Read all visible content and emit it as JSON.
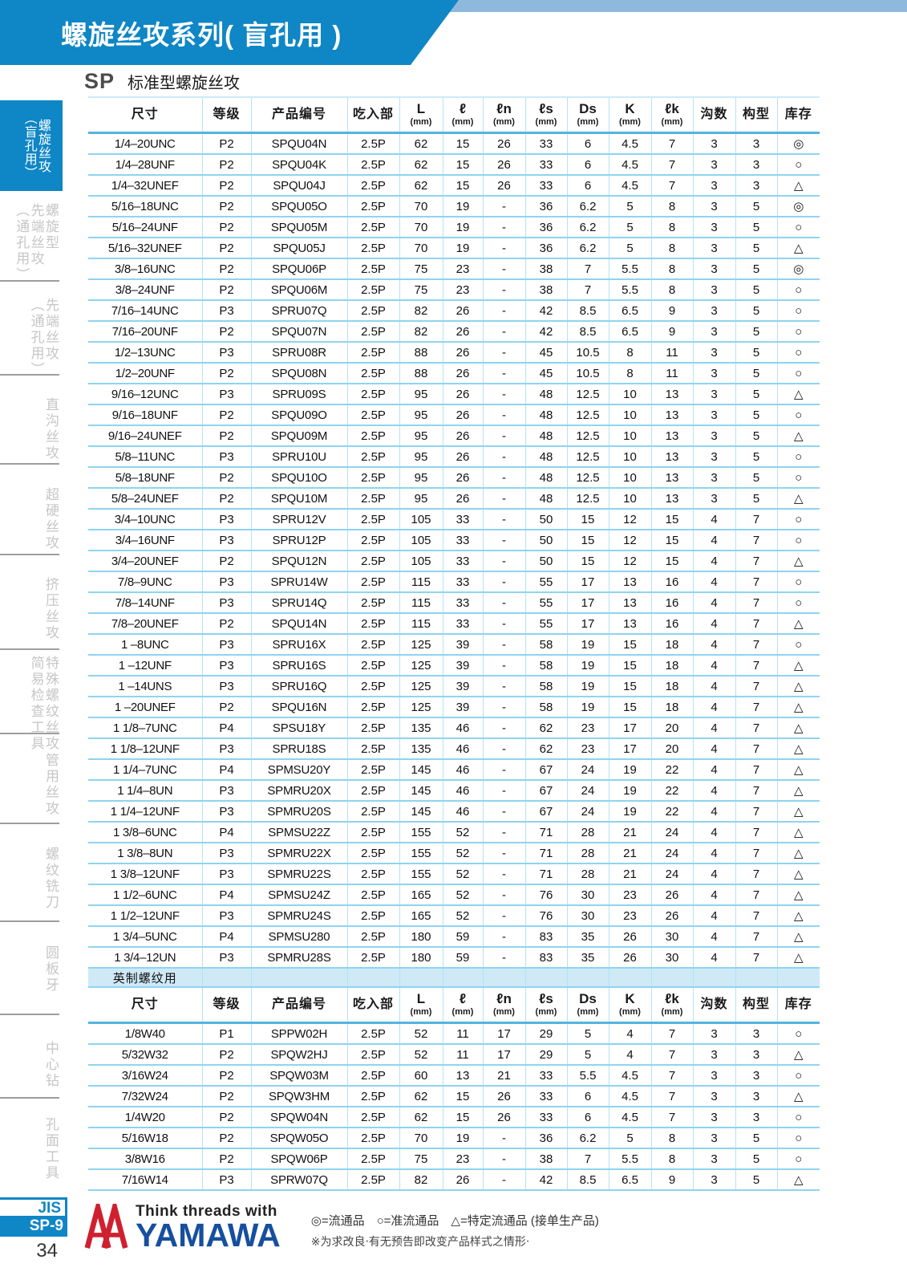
{
  "banner": {
    "title": "螺旋丝攻系列( 盲孔用 )"
  },
  "section": {
    "code": "SP",
    "title": "标准型螺旋丝攻"
  },
  "sidebar": {
    "items": [
      {
        "label": "螺旋丝攻\n（盲孔用）",
        "active": true
      },
      {
        "label": "螺旋型\n先端丝攻\n（通孔用）",
        "active": false
      },
      {
        "label": "先端丝攻\n（通孔用）",
        "active": false
      },
      {
        "label": "直沟丝攻",
        "active": false
      },
      {
        "label": "超硬丝攻",
        "active": false
      },
      {
        "label": "挤压丝攻",
        "active": false
      },
      {
        "label": "特殊螺纹丝攻\n简易检查工具",
        "active": false
      },
      {
        "label": "管用丝攻",
        "active": false
      },
      {
        "label": "螺纹铣刀",
        "active": false
      },
      {
        "label": "圆板牙",
        "active": false
      },
      {
        "label": "中心钻",
        "active": false
      },
      {
        "label": "孔面工具",
        "active": false
      }
    ],
    "jis_label": "JIS",
    "page_code": "SP-9",
    "page_number": "34"
  },
  "table": {
    "columns": [
      {
        "label": "尺寸",
        "cjk": true
      },
      {
        "label": "等级",
        "cjk": true
      },
      {
        "label": "产品编号",
        "cjk": true
      },
      {
        "label": "吃入部",
        "cjk": true
      },
      {
        "label": "L",
        "unit": "(mm)"
      },
      {
        "label": "ℓ",
        "unit": "(mm)"
      },
      {
        "label": "ℓn",
        "unit": "(mm)"
      },
      {
        "label": "ℓs",
        "unit": "(mm)"
      },
      {
        "label": "Ds",
        "unit": "(mm)"
      },
      {
        "label": "K",
        "unit": "(mm)"
      },
      {
        "label": "ℓk",
        "unit": "(mm)"
      },
      {
        "label": "沟数",
        "cjk": true
      },
      {
        "label": "构型",
        "cjk": true
      },
      {
        "label": "库存",
        "cjk": true
      }
    ],
    "unified_rows": [
      [
        "1/4–20UNC",
        "P2",
        "SPQU04N",
        "2.5P",
        "62",
        "15",
        "26",
        "33",
        "6",
        "4.5",
        "7",
        "3",
        "3",
        "◎"
      ],
      [
        "1/4–28UNF",
        "P2",
        "SPQU04K",
        "2.5P",
        "62",
        "15",
        "26",
        "33",
        "6",
        "4.5",
        "7",
        "3",
        "3",
        "○"
      ],
      [
        "1/4–32UNEF",
        "P2",
        "SPQU04J",
        "2.5P",
        "62",
        "15",
        "26",
        "33",
        "6",
        "4.5",
        "7",
        "3",
        "3",
        "△"
      ],
      [
        "5/16–18UNC",
        "P2",
        "SPQU05O",
        "2.5P",
        "70",
        "19",
        "-",
        "36",
        "6.2",
        "5",
        "8",
        "3",
        "5",
        "◎"
      ],
      [
        "5/16–24UNF",
        "P2",
        "SPQU05M",
        "2.5P",
        "70",
        "19",
        "-",
        "36",
        "6.2",
        "5",
        "8",
        "3",
        "5",
        "○"
      ],
      [
        "5/16–32UNEF",
        "P2",
        "SPQU05J",
        "2.5P",
        "70",
        "19",
        "-",
        "36",
        "6.2",
        "5",
        "8",
        "3",
        "5",
        "△"
      ],
      [
        "3/8–16UNC",
        "P2",
        "SPQU06P",
        "2.5P",
        "75",
        "23",
        "-",
        "38",
        "7",
        "5.5",
        "8",
        "3",
        "5",
        "◎"
      ],
      [
        "3/8–24UNF",
        "P2",
        "SPQU06M",
        "2.5P",
        "75",
        "23",
        "-",
        "38",
        "7",
        "5.5",
        "8",
        "3",
        "5",
        "○"
      ],
      [
        "7/16–14UNC",
        "P3",
        "SPRU07Q",
        "2.5P",
        "82",
        "26",
        "-",
        "42",
        "8.5",
        "6.5",
        "9",
        "3",
        "5",
        "○"
      ],
      [
        "7/16–20UNF",
        "P2",
        "SPQU07N",
        "2.5P",
        "82",
        "26",
        "-",
        "42",
        "8.5",
        "6.5",
        "9",
        "3",
        "5",
        "○"
      ],
      [
        "1/2–13UNC",
        "P3",
        "SPRU08R",
        "2.5P",
        "88",
        "26",
        "-",
        "45",
        "10.5",
        "8",
        "11",
        "3",
        "5",
        "○"
      ],
      [
        "1/2–20UNF",
        "P2",
        "SPQU08N",
        "2.5P",
        "88",
        "26",
        "-",
        "45",
        "10.5",
        "8",
        "11",
        "3",
        "5",
        "○"
      ],
      [
        "9/16–12UNC",
        "P3",
        "SPRU09S",
        "2.5P",
        "95",
        "26",
        "-",
        "48",
        "12.5",
        "10",
        "13",
        "3",
        "5",
        "△"
      ],
      [
        "9/16–18UNF",
        "P2",
        "SPQU09O",
        "2.5P",
        "95",
        "26",
        "-",
        "48",
        "12.5",
        "10",
        "13",
        "3",
        "5",
        "○"
      ],
      [
        "9/16–24UNEF",
        "P2",
        "SPQU09M",
        "2.5P",
        "95",
        "26",
        "-",
        "48",
        "12.5",
        "10",
        "13",
        "3",
        "5",
        "△"
      ],
      [
        "5/8–11UNC",
        "P3",
        "SPRU10U",
        "2.5P",
        "95",
        "26",
        "-",
        "48",
        "12.5",
        "10",
        "13",
        "3",
        "5",
        "○"
      ],
      [
        "5/8–18UNF",
        "P2",
        "SPQU10O",
        "2.5P",
        "95",
        "26",
        "-",
        "48",
        "12.5",
        "10",
        "13",
        "3",
        "5",
        "○"
      ],
      [
        "5/8–24UNEF",
        "P2",
        "SPQU10M",
        "2.5P",
        "95",
        "26",
        "-",
        "48",
        "12.5",
        "10",
        "13",
        "3",
        "5",
        "△"
      ],
      [
        "3/4–10UNC",
        "P3",
        "SPRU12V",
        "2.5P",
        "105",
        "33",
        "-",
        "50",
        "15",
        "12",
        "15",
        "4",
        "7",
        "○"
      ],
      [
        "3/4–16UNF",
        "P3",
        "SPRU12P",
        "2.5P",
        "105",
        "33",
        "-",
        "50",
        "15",
        "12",
        "15",
        "4",
        "7",
        "○"
      ],
      [
        "3/4–20UNEF",
        "P2",
        "SPQU12N",
        "2.5P",
        "105",
        "33",
        "-",
        "50",
        "15",
        "12",
        "15",
        "4",
        "7",
        "△"
      ],
      [
        "7/8–9UNC",
        "P3",
        "SPRU14W",
        "2.5P",
        "115",
        "33",
        "-",
        "55",
        "17",
        "13",
        "16",
        "4",
        "7",
        "○"
      ],
      [
        "7/8–14UNF",
        "P3",
        "SPRU14Q",
        "2.5P",
        "115",
        "33",
        "-",
        "55",
        "17",
        "13",
        "16",
        "4",
        "7",
        "○"
      ],
      [
        "7/8–20UNEF",
        "P2",
        "SPQU14N",
        "2.5P",
        "115",
        "33",
        "-",
        "55",
        "17",
        "13",
        "16",
        "4",
        "7",
        "△"
      ],
      [
        "1 –8UNC",
        "P3",
        "SPRU16X",
        "2.5P",
        "125",
        "39",
        "-",
        "58",
        "19",
        "15",
        "18",
        "4",
        "7",
        "○"
      ],
      [
        "1 –12UNF",
        "P3",
        "SPRU16S",
        "2.5P",
        "125",
        "39",
        "-",
        "58",
        "19",
        "15",
        "18",
        "4",
        "7",
        "△"
      ],
      [
        "1 –14UNS",
        "P3",
        "SPRU16Q",
        "2.5P",
        "125",
        "39",
        "-",
        "58",
        "19",
        "15",
        "18",
        "4",
        "7",
        "△"
      ],
      [
        "1 –20UNEF",
        "P2",
        "SPQU16N",
        "2.5P",
        "125",
        "39",
        "-",
        "58",
        "19",
        "15",
        "18",
        "4",
        "7",
        "△"
      ],
      [
        "1 1/8–7UNC",
        "P4",
        "SPSU18Y",
        "2.5P",
        "135",
        "46",
        "-",
        "62",
        "23",
        "17",
        "20",
        "4",
        "7",
        "△"
      ],
      [
        "1 1/8–12UNF",
        "P3",
        "SPRU18S",
        "2.5P",
        "135",
        "46",
        "-",
        "62",
        "23",
        "17",
        "20",
        "4",
        "7",
        "△"
      ],
      [
        "1 1/4–7UNC",
        "P4",
        "SPMSU20Y",
        "2.5P",
        "145",
        "46",
        "-",
        "67",
        "24",
        "19",
        "22",
        "4",
        "7",
        "△"
      ],
      [
        "1 1/4–8UN",
        "P3",
        "SPMRU20X",
        "2.5P",
        "145",
        "46",
        "-",
        "67",
        "24",
        "19",
        "22",
        "4",
        "7",
        "△"
      ],
      [
        "1 1/4–12UNF",
        "P3",
        "SPMRU20S",
        "2.5P",
        "145",
        "46",
        "-",
        "67",
        "24",
        "19",
        "22",
        "4",
        "7",
        "△"
      ],
      [
        "1 3/8–6UNC",
        "P4",
        "SPMSU22Z",
        "2.5P",
        "155",
        "52",
        "-",
        "71",
        "28",
        "21",
        "24",
        "4",
        "7",
        "△"
      ],
      [
        "1 3/8–8UN",
        "P3",
        "SPMRU22X",
        "2.5P",
        "155",
        "52",
        "-",
        "71",
        "28",
        "21",
        "24",
        "4",
        "7",
        "△"
      ],
      [
        "1 3/8–12UNF",
        "P3",
        "SPMRU22S",
        "2.5P",
        "155",
        "52",
        "-",
        "71",
        "28",
        "21",
        "24",
        "4",
        "7",
        "△"
      ],
      [
        "1 1/2–6UNC",
        "P4",
        "SPMSU24Z",
        "2.5P",
        "165",
        "52",
        "-",
        "76",
        "30",
        "23",
        "26",
        "4",
        "7",
        "△"
      ],
      [
        "1 1/2–12UNF",
        "P3",
        "SPMRU24S",
        "2.5P",
        "165",
        "52",
        "-",
        "76",
        "30",
        "23",
        "26",
        "4",
        "7",
        "△"
      ],
      [
        "1 3/4–5UNC",
        "P4",
        "SPMSU280",
        "2.5P",
        "180",
        "59",
        "-",
        "83",
        "35",
        "26",
        "30",
        "4",
        "7",
        "△"
      ],
      [
        "1 3/4–12UN",
        "P3",
        "SPMRU28S",
        "2.5P",
        "180",
        "59",
        "-",
        "83",
        "35",
        "26",
        "30",
        "4",
        "7",
        "△"
      ]
    ],
    "section2_label": "英制螺纹用",
    "whitworth_rows": [
      [
        "1/8W40",
        "P1",
        "SPPW02H",
        "2.5P",
        "52",
        "11",
        "17",
        "29",
        "5",
        "4",
        "7",
        "3",
        "3",
        "○"
      ],
      [
        "5/32W32",
        "P2",
        "SPQW2HJ",
        "2.5P",
        "52",
        "11",
        "17",
        "29",
        "5",
        "4",
        "7",
        "3",
        "3",
        "△"
      ],
      [
        "3/16W24",
        "P2",
        "SPQW03M",
        "2.5P",
        "60",
        "13",
        "21",
        "33",
        "5.5",
        "4.5",
        "7",
        "3",
        "3",
        "○"
      ],
      [
        "7/32W24",
        "P2",
        "SPQW3HM",
        "2.5P",
        "62",
        "15",
        "26",
        "33",
        "6",
        "4.5",
        "7",
        "3",
        "3",
        "△"
      ],
      [
        "1/4W20",
        "P2",
        "SPQW04N",
        "2.5P",
        "62",
        "15",
        "26",
        "33",
        "6",
        "4.5",
        "7",
        "3",
        "3",
        "○"
      ],
      [
        "5/16W18",
        "P2",
        "SPQW05O",
        "2.5P",
        "70",
        "19",
        "-",
        "36",
        "6.2",
        "5",
        "8",
        "3",
        "5",
        "○"
      ],
      [
        "3/8W16",
        "P2",
        "SPQW06P",
        "2.5P",
        "75",
        "23",
        "-",
        "38",
        "7",
        "5.5",
        "8",
        "3",
        "5",
        "○"
      ],
      [
        "7/16W14",
        "P3",
        "SPRW07Q",
        "2.5P",
        "82",
        "26",
        "-",
        "42",
        "8.5",
        "6.5",
        "9",
        "3",
        "5",
        "△"
      ]
    ]
  },
  "footer": {
    "logo_tagline": "Think threads with",
    "logo_name": "YAMAWA",
    "legend": "◎=流通品　○=准流通品　△=特定流通品 (接单生产品)",
    "note": "※为求改良‧有无预告即改变产品样式之情形‧"
  },
  "colors": {
    "brand_blue": "#0f86c5",
    "light_strip_blue": "#8fb9dc",
    "table_line_blue": "#8ed4f0",
    "section_band_blue": "#cfe9f7",
    "logo_red": "#cf2030",
    "logo_navy": "#164f9e"
  }
}
